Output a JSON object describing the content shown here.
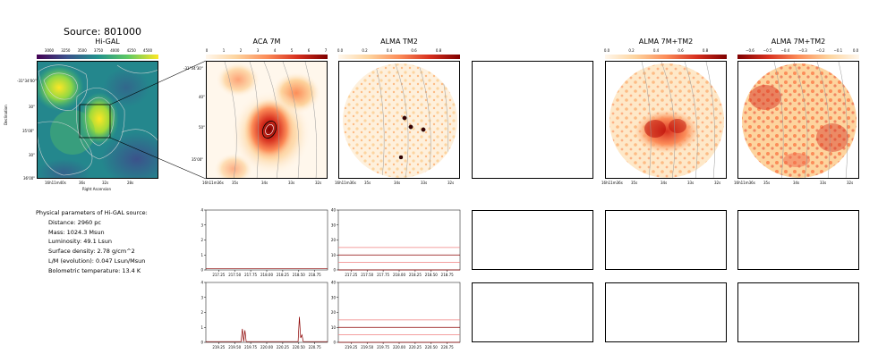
{
  "page_title": "Source: 801000",
  "panels": {
    "higal": {
      "title": "Hi-GAL",
      "colorbar_ticks": [
        "3000",
        "3250",
        "3500",
        "3750",
        "4000",
        "4250",
        "4500"
      ],
      "ytick_labels": [
        "-31°34'00\"",
        "30\"",
        "35'00\"",
        "30\"",
        "36'00\""
      ],
      "xtick_labels": [
        "16h11m40s",
        "36s",
        "32s",
        "28s"
      ],
      "xlabel": "Right Ascension",
      "ylabel": "Declination"
    },
    "aca7m": {
      "title": "ACA 7M",
      "colorbar_ticks": [
        "0",
        "1",
        "2",
        "3",
        "4",
        "5",
        "6",
        "7"
      ],
      "ytick_labels": [
        "-31°34'30\"",
        "40\"",
        "50\"",
        "35'00\""
      ],
      "xtick_labels": [
        "16h11m36s",
        "35s",
        "34s",
        "33s",
        "32s"
      ]
    },
    "almatm2": {
      "title": "ALMA TM2",
      "colorbar_ticks": [
        "0.0",
        "0.2",
        "0.4",
        "0.6",
        "0.8"
      ],
      "xtick_labels": [
        "16h11m36s",
        "35s",
        "34s",
        "33s",
        "32s"
      ]
    },
    "alma7mtm2": {
      "title": "ALMA 7M+TM2",
      "colorbar_ticks": [
        "0.0",
        "0.2",
        "0.4",
        "0.6",
        "0.8"
      ],
      "xtick_labels": [
        "16h11m36s",
        "35s",
        "34s",
        "33s",
        "32s"
      ]
    },
    "alma7mtm2_diff": {
      "title": "ALMA 7M+TM2",
      "colorbar_ticks": [
        "−0.6",
        "−0.5",
        "−0.4",
        "−0.3",
        "−0.2",
        "−0.1",
        "0.0"
      ],
      "xtick_labels": [
        "16h11m36s",
        "35s",
        "34s",
        "33s",
        "32s"
      ]
    }
  },
  "properties": {
    "heading": "Physical parameters of Hi-GAL source:",
    "distance": "Distance: 2960 pc",
    "mass": "Mass: 1024.3 Msun",
    "luminosity": "Luminosity: 49.1 Lsun",
    "surface_density": "Surface density: 2.78 g/cm^2",
    "lm": "L/M (evolution): 0.047 Lsun/Msun",
    "tbol": "Bolometric temperature: 13.4 K"
  },
  "colors": {
    "spectrum_dark": "#8b0000",
    "spectrum_light": "#f08080",
    "contour": "#9a9a9a",
    "higal_high": "#fde725",
    "higal_low": "#3b528b"
  },
  "chart_data": [
    {
      "type": "line",
      "id": "spec_aca_row1",
      "xticks": [
        "217.25",
        "217.50",
        "217.75",
        "218.00",
        "218.25",
        "218.50",
        "218.75"
      ],
      "xlim": [
        217.05,
        218.95
      ],
      "yticks": [
        "0",
        "1",
        "2",
        "3",
        "4"
      ],
      "ylim": [
        0,
        4
      ],
      "series": [
        {
          "x": [
            217.05,
            218.95
          ],
          "values": [
            0.1,
            0.1
          ]
        }
      ]
    },
    {
      "type": "line",
      "id": "spec_tm2_row1",
      "xticks": [
        "217.25",
        "217.50",
        "217.75",
        "218.00",
        "218.25",
        "218.50",
        "218.75"
      ],
      "xlim": [
        217.05,
        218.95
      ],
      "yticks": [
        "0",
        "10",
        "20",
        "30",
        "40"
      ],
      "ylim": [
        0,
        40
      ],
      "series": [
        {
          "x": [
            217.05,
            218.95
          ],
          "values": [
            0,
            0
          ]
        },
        {
          "x": [
            217.05,
            218.95
          ],
          "values": [
            5,
            5
          ]
        },
        {
          "x": [
            217.05,
            218.95
          ],
          "values": [
            10,
            10
          ]
        },
        {
          "x": [
            217.05,
            218.95
          ],
          "values": [
            15,
            15
          ]
        }
      ]
    },
    {
      "type": "line",
      "id": "spec_aca_row2",
      "xticks": [
        "219.25",
        "219.50",
        "219.75",
        "220.00",
        "220.25",
        "220.50",
        "220.75"
      ],
      "xlim": [
        219.05,
        220.95
      ],
      "yticks": [
        "0",
        "1",
        "2",
        "3",
        "4"
      ],
      "ylim": [
        0,
        4
      ],
      "series": [
        {
          "x": [
            219.05,
            219.6,
            219.62,
            219.64,
            219.66,
            219.68,
            219.7,
            220.3,
            220.49,
            220.51,
            220.53,
            220.55,
            220.57,
            220.95
          ],
          "values": [
            0.05,
            0.05,
            0.9,
            0.05,
            0.8,
            0.05,
            0.05,
            0.05,
            0.05,
            1.7,
            0.3,
            0.5,
            0.05,
            0.05
          ]
        }
      ]
    },
    {
      "type": "line",
      "id": "spec_tm2_row2",
      "xticks": [
        "219.25",
        "219.50",
        "219.75",
        "220.00",
        "220.25",
        "220.50",
        "220.75"
      ],
      "xlim": [
        219.05,
        220.95
      ],
      "yticks": [
        "0",
        "10",
        "20",
        "30",
        "40"
      ],
      "ylim": [
        0,
        40
      ],
      "series": [
        {
          "x": [
            219.05,
            220.95
          ],
          "values": [
            0,
            0
          ]
        },
        {
          "x": [
            219.05,
            220.95
          ],
          "values": [
            5,
            5
          ]
        },
        {
          "x": [
            219.05,
            220.95
          ],
          "values": [
            10,
            10
          ]
        },
        {
          "x": [
            219.05,
            220.95
          ],
          "values": [
            15,
            15
          ]
        }
      ]
    }
  ]
}
